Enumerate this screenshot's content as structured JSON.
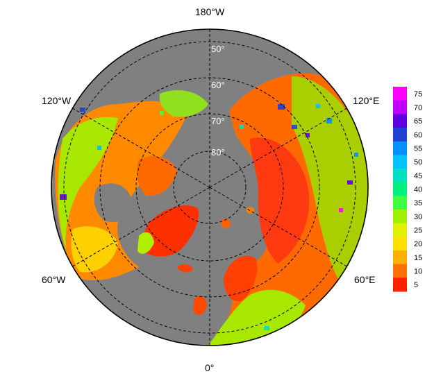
{
  "map": {
    "longitude_labels": {
      "top": "180°W",
      "upper_left": "120°W",
      "upper_right": "120°E",
      "lower_left": "60°W",
      "lower_right": "60°E",
      "bottom": "0°"
    },
    "latitude_labels": [
      "50°",
      "60°",
      "70°",
      "80°"
    ],
    "colors": {
      "ocean": "#808080",
      "border": "#000000",
      "grid": "#000000"
    }
  },
  "legend": {
    "ticks": [
      "75",
      "70",
      "65",
      "60",
      "55",
      "50",
      "45",
      "40",
      "35",
      "30",
      "25",
      "20",
      "15",
      "10",
      "5"
    ],
    "colors": [
      "#ff00ff",
      "#c000ff",
      "#6000e0",
      "#2040d0",
      "#0090ff",
      "#00c0ff",
      "#00e0c0",
      "#00f080",
      "#40ff40",
      "#a0f000",
      "#e0f000",
      "#ffe000",
      "#ffb000",
      "#ff7000",
      "#ff2000"
    ]
  }
}
